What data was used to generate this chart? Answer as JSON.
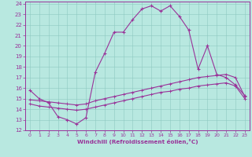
{
  "xlabel": "Windchill (Refroidissement éolien,°C)",
  "bg_color": "#b8e8e0",
  "line_color": "#993399",
  "xlim": [
    -0.5,
    23.5
  ],
  "ylim": [
    12,
    24.2
  ],
  "xticks": [
    0,
    1,
    2,
    3,
    4,
    5,
    6,
    7,
    8,
    9,
    10,
    11,
    12,
    13,
    14,
    15,
    16,
    17,
    18,
    19,
    20,
    21,
    22,
    23
  ],
  "yticks": [
    12,
    13,
    14,
    15,
    16,
    17,
    18,
    19,
    20,
    21,
    22,
    23,
    24
  ],
  "curve1_x": [
    0,
    1,
    2,
    3,
    4,
    5,
    6,
    7,
    8,
    9,
    10,
    11,
    12,
    13,
    14,
    15,
    16,
    17,
    18,
    19,
    20,
    21,
    22,
    23
  ],
  "curve1_y": [
    15.8,
    15.0,
    14.6,
    13.3,
    13.0,
    12.6,
    13.2,
    17.5,
    19.3,
    21.3,
    21.3,
    22.5,
    23.5,
    23.8,
    23.3,
    23.8,
    22.8,
    21.5,
    17.8,
    20.0,
    17.3,
    17.0,
    16.3,
    15.3
  ],
  "curve2_x": [
    0,
    1,
    2,
    3,
    4,
    5,
    6,
    7,
    8,
    9,
    10,
    11,
    12,
    13,
    14,
    15,
    16,
    17,
    18,
    19,
    20,
    21,
    22,
    23
  ],
  "curve2_y": [
    14.9,
    14.8,
    14.7,
    14.6,
    14.5,
    14.4,
    14.5,
    14.8,
    15.0,
    15.2,
    15.4,
    15.6,
    15.8,
    16.0,
    16.2,
    16.4,
    16.6,
    16.8,
    17.0,
    17.1,
    17.2,
    17.3,
    17.0,
    15.2
  ],
  "curve3_x": [
    0,
    1,
    2,
    3,
    4,
    5,
    6,
    7,
    8,
    9,
    10,
    11,
    12,
    13,
    14,
    15,
    16,
    17,
    18,
    19,
    20,
    21,
    22,
    23
  ],
  "curve3_y": [
    14.5,
    14.3,
    14.2,
    14.1,
    14.0,
    13.9,
    14.0,
    14.2,
    14.4,
    14.6,
    14.8,
    15.0,
    15.2,
    15.4,
    15.6,
    15.7,
    15.9,
    16.0,
    16.2,
    16.3,
    16.4,
    16.5,
    16.2,
    15.0
  ]
}
